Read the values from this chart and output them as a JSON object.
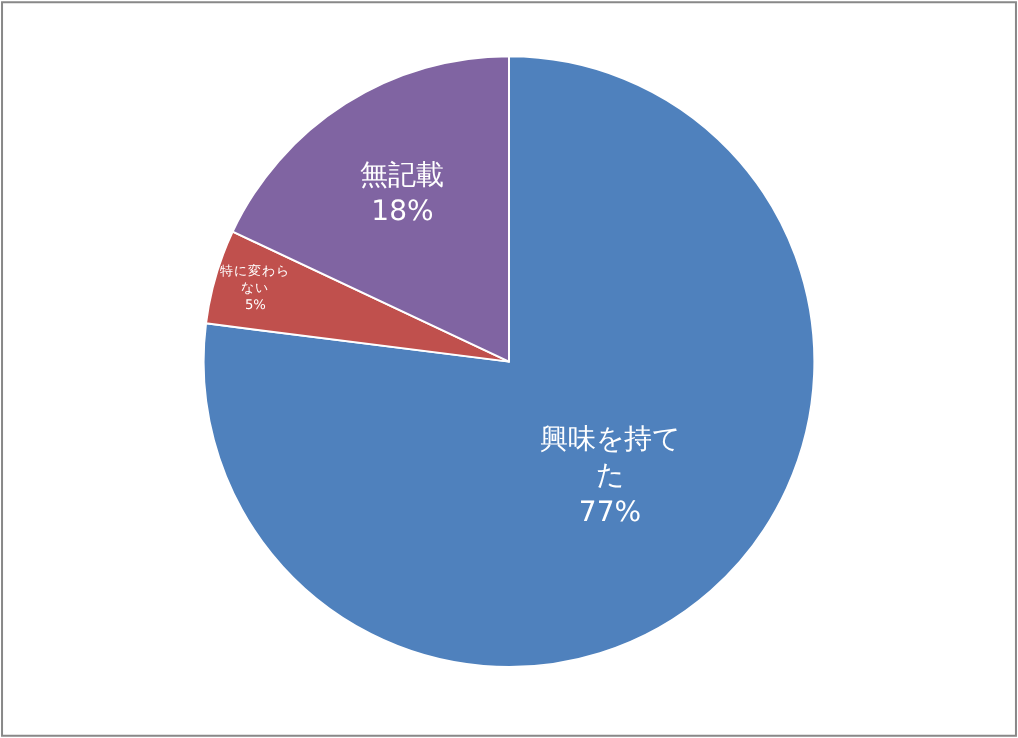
{
  "chart_data": {
    "type": "pie",
    "categories": [
      "興味を持てた",
      "特に変わらない",
      "無記載"
    ],
    "values": [
      77,
      5,
      18
    ],
    "colors": [
      "#4f81bd",
      "#c0504d",
      "#8064a2"
    ],
    "value_labels": [
      "77%",
      "5%",
      "18%"
    ],
    "legend": false
  }
}
